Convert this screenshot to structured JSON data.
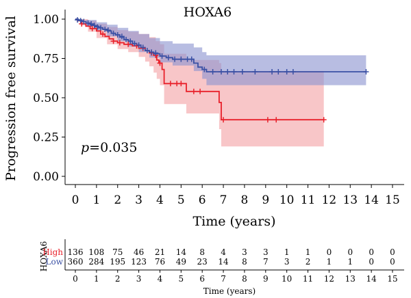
{
  "chart_data": {
    "type": "line",
    "title": "HOXA6",
    "xlabel": "Time (years)",
    "ylabel": "Progression free survival",
    "xlim": [
      0,
      15
    ],
    "ylim": [
      0,
      1
    ],
    "x_ticks": [
      "0",
      "1",
      "2",
      "3",
      "4",
      "5",
      "6",
      "7",
      "8",
      "9",
      "10",
      "11",
      "12",
      "13",
      "14",
      "15"
    ],
    "y_ticks": [
      "0.00",
      "0.25",
      "0.50",
      "0.75",
      "1.00"
    ],
    "grid": false,
    "annotation": {
      "p_label": "p",
      "p_value": "=0.035"
    },
    "series": [
      {
        "name": "High",
        "color": "#e8202a",
        "band_color": "#f4a3a6",
        "steps": [
          [
            0,
            1.0
          ],
          [
            0.1,
            0.99
          ],
          [
            0.3,
            0.97
          ],
          [
            0.5,
            0.955
          ],
          [
            0.7,
            0.94
          ],
          [
            1.0,
            0.925
          ],
          [
            1.2,
            0.905
          ],
          [
            1.4,
            0.89
          ],
          [
            1.6,
            0.875
          ],
          [
            1.8,
            0.86
          ],
          [
            2.0,
            0.85
          ],
          [
            2.3,
            0.84
          ],
          [
            2.7,
            0.83
          ],
          [
            3.0,
            0.815
          ],
          [
            3.3,
            0.8
          ],
          [
            3.5,
            0.785
          ],
          [
            3.7,
            0.77
          ],
          [
            3.85,
            0.74
          ],
          [
            3.95,
            0.72
          ],
          [
            4.1,
            0.68
          ],
          [
            4.2,
            0.59
          ],
          [
            5.25,
            0.54
          ],
          [
            6.8,
            0.47
          ],
          [
            6.9,
            0.36
          ],
          [
            11.75,
            0.36
          ]
        ],
        "upper": [
          [
            0,
            1.0
          ],
          [
            0.3,
            1.0
          ],
          [
            0.6,
            0.99
          ],
          [
            1.0,
            0.97
          ],
          [
            1.5,
            0.95
          ],
          [
            2.0,
            0.93
          ],
          [
            2.5,
            0.92
          ],
          [
            3.0,
            0.905
          ],
          [
            3.5,
            0.885
          ],
          [
            3.8,
            0.86
          ],
          [
            4.0,
            0.84
          ],
          [
            4.2,
            0.78
          ],
          [
            5.25,
            0.74
          ],
          [
            6.8,
            0.72
          ],
          [
            6.9,
            0.67
          ],
          [
            11.75,
            0.67
          ]
        ],
        "lower": [
          [
            0,
            1.0
          ],
          [
            0.3,
            0.96
          ],
          [
            0.6,
            0.92
          ],
          [
            1.0,
            0.88
          ],
          [
            1.5,
            0.84
          ],
          [
            2.0,
            0.81
          ],
          [
            2.5,
            0.79
          ],
          [
            3.0,
            0.76
          ],
          [
            3.3,
            0.73
          ],
          [
            3.5,
            0.7
          ],
          [
            3.7,
            0.66
          ],
          [
            3.85,
            0.62
          ],
          [
            4.0,
            0.58
          ],
          [
            4.2,
            0.46
          ],
          [
            5.25,
            0.4
          ],
          [
            6.8,
            0.3
          ],
          [
            6.9,
            0.19
          ],
          [
            11.75,
            0.19
          ]
        ],
        "censored": [
          [
            0.3,
            0.97
          ],
          [
            0.8,
            0.94
          ],
          [
            1.3,
            0.905
          ],
          [
            1.8,
            0.86
          ],
          [
            2.1,
            0.85
          ],
          [
            2.5,
            0.84
          ],
          [
            2.9,
            0.83
          ],
          [
            3.2,
            0.815
          ],
          [
            3.6,
            0.785
          ],
          [
            3.8,
            0.77
          ],
          [
            4.0,
            0.72
          ],
          [
            4.5,
            0.59
          ],
          [
            4.8,
            0.59
          ],
          [
            5.0,
            0.59
          ],
          [
            5.6,
            0.54
          ],
          [
            5.9,
            0.54
          ],
          [
            7.0,
            0.36
          ],
          [
            9.1,
            0.36
          ],
          [
            9.5,
            0.36
          ],
          [
            11.75,
            0.36
          ]
        ]
      },
      {
        "name": "Low",
        "color": "#3a50a4",
        "band_color": "#8c95d0",
        "steps": [
          [
            0,
            1.0
          ],
          [
            0.15,
            0.995
          ],
          [
            0.3,
            0.985
          ],
          [
            0.5,
            0.975
          ],
          [
            0.7,
            0.965
          ],
          [
            0.9,
            0.955
          ],
          [
            1.1,
            0.945
          ],
          [
            1.3,
            0.935
          ],
          [
            1.5,
            0.925
          ],
          [
            1.7,
            0.91
          ],
          [
            1.9,
            0.9
          ],
          [
            2.1,
            0.885
          ],
          [
            2.3,
            0.87
          ],
          [
            2.5,
            0.86
          ],
          [
            2.7,
            0.845
          ],
          [
            2.9,
            0.835
          ],
          [
            3.1,
            0.815
          ],
          [
            3.3,
            0.8
          ],
          [
            3.5,
            0.79
          ],
          [
            3.7,
            0.78
          ],
          [
            4.0,
            0.765
          ],
          [
            4.3,
            0.755
          ],
          [
            4.6,
            0.745
          ],
          [
            5.6,
            0.72
          ],
          [
            5.8,
            0.695
          ],
          [
            6.0,
            0.68
          ],
          [
            6.2,
            0.665
          ],
          [
            13.75,
            0.665
          ]
        ],
        "upper": [
          [
            0,
            1.0
          ],
          [
            0.5,
            0.995
          ],
          [
            1.0,
            0.98
          ],
          [
            1.5,
            0.965
          ],
          [
            2.0,
            0.945
          ],
          [
            2.5,
            0.925
          ],
          [
            3.0,
            0.905
          ],
          [
            3.5,
            0.88
          ],
          [
            4.0,
            0.86
          ],
          [
            4.6,
            0.845
          ],
          [
            5.6,
            0.82
          ],
          [
            6.0,
            0.79
          ],
          [
            6.2,
            0.77
          ],
          [
            13.75,
            0.77
          ]
        ],
        "lower": [
          [
            0,
            1.0
          ],
          [
            0.5,
            0.955
          ],
          [
            1.0,
            0.93
          ],
          [
            1.5,
            0.89
          ],
          [
            2.0,
            0.86
          ],
          [
            2.5,
            0.825
          ],
          [
            3.0,
            0.79
          ],
          [
            3.5,
            0.755
          ],
          [
            4.0,
            0.725
          ],
          [
            4.6,
            0.705
          ],
          [
            5.6,
            0.67
          ],
          [
            6.0,
            0.62
          ],
          [
            6.2,
            0.58
          ],
          [
            13.75,
            0.58
          ]
        ],
        "censored": [
          [
            0.1,
            0.995
          ],
          [
            0.25,
            0.99
          ],
          [
            0.4,
            0.985
          ],
          [
            0.6,
            0.975
          ],
          [
            0.75,
            0.97
          ],
          [
            0.9,
            0.96
          ],
          [
            1.05,
            0.95
          ],
          [
            1.2,
            0.945
          ],
          [
            1.4,
            0.935
          ],
          [
            1.55,
            0.93
          ],
          [
            1.8,
            0.91
          ],
          [
            2.0,
            0.9
          ],
          [
            2.2,
            0.89
          ],
          [
            2.4,
            0.87
          ],
          [
            2.6,
            0.86
          ],
          [
            2.8,
            0.845
          ],
          [
            3.0,
            0.835
          ],
          [
            3.2,
            0.82
          ],
          [
            3.4,
            0.8
          ],
          [
            3.6,
            0.79
          ],
          [
            3.8,
            0.785
          ],
          [
            4.1,
            0.765
          ],
          [
            4.4,
            0.755
          ],
          [
            4.7,
            0.745
          ],
          [
            5.0,
            0.745
          ],
          [
            5.3,
            0.745
          ],
          [
            5.5,
            0.745
          ],
          [
            6.1,
            0.68
          ],
          [
            6.5,
            0.665
          ],
          [
            6.9,
            0.665
          ],
          [
            7.2,
            0.665
          ],
          [
            7.5,
            0.665
          ],
          [
            7.9,
            0.665
          ],
          [
            8.5,
            0.665
          ],
          [
            9.3,
            0.665
          ],
          [
            9.6,
            0.665
          ],
          [
            10.0,
            0.665
          ],
          [
            10.3,
            0.665
          ],
          [
            13.75,
            0.665
          ]
        ]
      }
    ],
    "risk_table": {
      "strata_label": "HOXA6",
      "xlabel": "Time (years)",
      "times": [
        "0",
        "1",
        "2",
        "3",
        "4",
        "5",
        "6",
        "7",
        "8",
        "9",
        "10",
        "11",
        "12",
        "13",
        "14",
        "15"
      ],
      "rows": [
        {
          "name": "High",
          "color": "#e8202a",
          "values": [
            "136",
            "108",
            "75",
            "46",
            "21",
            "14",
            "8",
            "4",
            "3",
            "3",
            "1",
            "1",
            "0",
            "0",
            "0",
            "0"
          ]
        },
        {
          "name": "Low",
          "color": "#3a50a4",
          "values": [
            "360",
            "284",
            "195",
            "123",
            "76",
            "49",
            "23",
            "14",
            "8",
            "7",
            "3",
            "2",
            "1",
            "1",
            "0",
            "0"
          ]
        }
      ]
    }
  }
}
